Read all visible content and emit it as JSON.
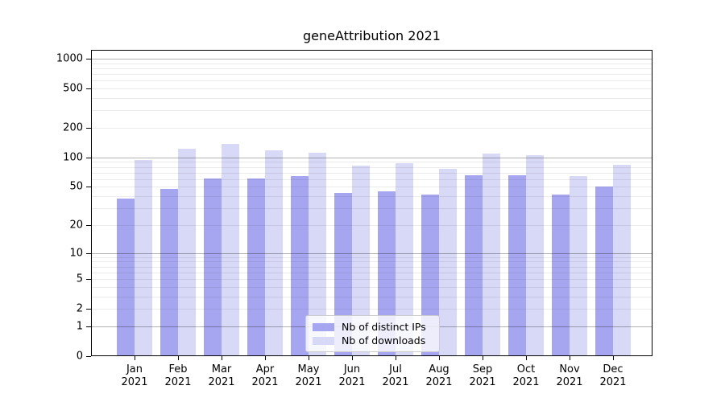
{
  "title": "geneAttribution 2021",
  "chart_data": {
    "type": "bar",
    "title": "geneAttribution 2021",
    "y_scale": "log1p",
    "ylim": [
      0,
      1230
    ],
    "y_ticks_labeled": [
      0,
      1,
      2,
      5,
      10,
      20,
      50,
      100,
      200,
      500,
      1000
    ],
    "y_gridlines_major": [
      1,
      10,
      100,
      1000
    ],
    "y_gridlines_minor": [
      2,
      3,
      4,
      5,
      6,
      7,
      8,
      9,
      20,
      30,
      40,
      50,
      60,
      70,
      80,
      90,
      200,
      300,
      400,
      500,
      600,
      700,
      800,
      900
    ],
    "categories": [
      "Jan",
      "Feb",
      "Mar",
      "Apr",
      "May",
      "Jun",
      "Jul",
      "Aug",
      "Sep",
      "Oct",
      "Nov",
      "Dec"
    ],
    "x_year_label": "2021",
    "series": [
      {
        "name": "Nb of distinct IPs",
        "color": "#a6a6f0",
        "values": [
          38,
          48,
          61,
          61,
          64,
          43,
          45,
          42,
          66,
          66,
          42,
          50
        ]
      },
      {
        "name": "Nb of downloads",
        "color": "#d8d8f7",
        "values": [
          94,
          123,
          138,
          118,
          112,
          82,
          87,
          76,
          110,
          106,
          64,
          84
        ]
      }
    ],
    "legend_position": "inside-bottom-center",
    "grid": true
  },
  "colors": {
    "background": "#ffffff",
    "axis": "#000000",
    "grid_major": "#b3b3b3",
    "grid_minor": "#ececec",
    "series_distinct_ips": "#a6a6f0",
    "series_downloads": "#d8d8f7",
    "legend_border": "#cccccc"
  }
}
